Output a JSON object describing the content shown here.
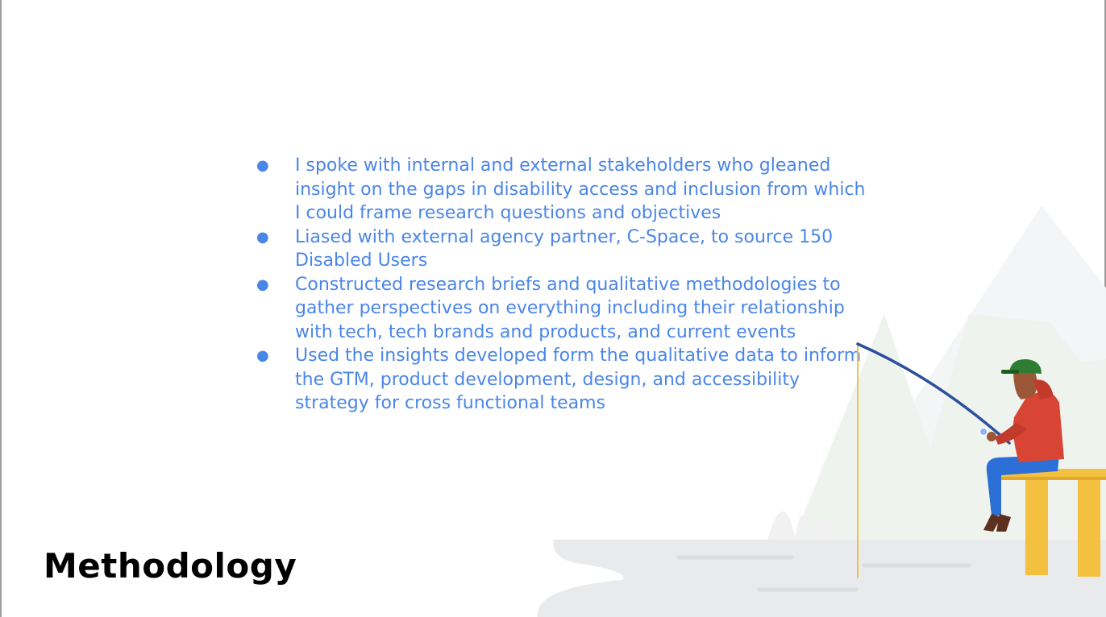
{
  "slide": {
    "title": "Methodology",
    "bullet_marker": "●",
    "bullets": [
      "I spoke with internal and external stakeholders who gleaned insight on the gaps in disability access and inclusion from which I could frame research questions and objectives",
      "Liased with external agency partner, C-Space, to source 150 Disabled Users",
      "Constructed research briefs and qualitative methodologies to gather perspectives on everything including their relationship with tech, tech brands and products, and current events",
      "Used the insights developed form the qualitative data to inform the GTM, product development, design, and accessibility strategy for cross functional teams"
    ]
  },
  "colors": {
    "bullet_text": "#4a86e8",
    "title_text": "#000000",
    "rod": "#2b4f9e",
    "cap": "#2e7d32",
    "jacket": "#d84534",
    "pants": "#2c6fd6",
    "dock": "#f4c03f"
  },
  "illustration": {
    "icon": "fisherman-illustration-icon"
  }
}
